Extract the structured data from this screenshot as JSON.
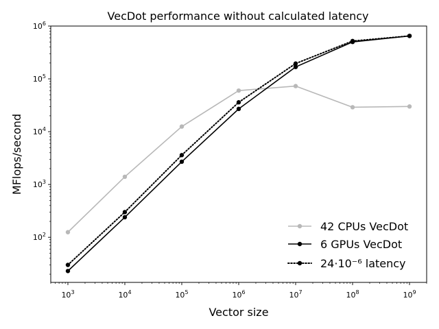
{
  "chart_data": {
    "type": "line",
    "title": "VecDot performance without calculated latency",
    "xlabel": "Vector size",
    "ylabel": "MFlops/second",
    "xscale": "log",
    "yscale": "log",
    "xlim": [
      500,
      2000000000
    ],
    "ylim": [
      14,
      1000000
    ],
    "x": [
      1000,
      10000,
      100000,
      1000000,
      10000000,
      100000000,
      1000000000
    ],
    "x_ticks": [
      {
        "value": 1000,
        "base": "10",
        "exp": "3"
      },
      {
        "value": 10000,
        "base": "10",
        "exp": "4"
      },
      {
        "value": 100000,
        "base": "10",
        "exp": "5"
      },
      {
        "value": 1000000,
        "base": "10",
        "exp": "6"
      },
      {
        "value": 10000000,
        "base": "10",
        "exp": "7"
      },
      {
        "value": 100000000,
        "base": "10",
        "exp": "8"
      },
      {
        "value": 1000000000,
        "base": "10",
        "exp": "9"
      }
    ],
    "y_ticks": [
      {
        "value": 100,
        "base": "10",
        "exp": "2"
      },
      {
        "value": 1000,
        "base": "10",
        "exp": "3"
      },
      {
        "value": 10000,
        "base": "10",
        "exp": "4"
      },
      {
        "value": 100000,
        "base": "10",
        "exp": "5"
      },
      {
        "value": 1000000,
        "base": "10",
        "exp": "6"
      }
    ],
    "series": [
      {
        "name": "42 CPUs VecDot",
        "color": "#b8b8b8",
        "dash": "solid",
        "values": [
          125,
          1400,
          12500,
          60000,
          73000,
          29000,
          30000
        ]
      },
      {
        "name": "6 GPUs VecDot",
        "color": "#000000",
        "dash": "solid",
        "values": [
          23,
          240,
          2700,
          27000,
          168000,
          500000,
          650000
        ]
      },
      {
        "name": "24·10⁻⁶ latency",
        "color": "#000000",
        "dash": "dotted",
        "values": [
          30,
          300,
          3600,
          36000,
          195000,
          520000,
          650000
        ]
      }
    ],
    "legend": {
      "placement": "bottom-right"
    },
    "grid": false
  }
}
